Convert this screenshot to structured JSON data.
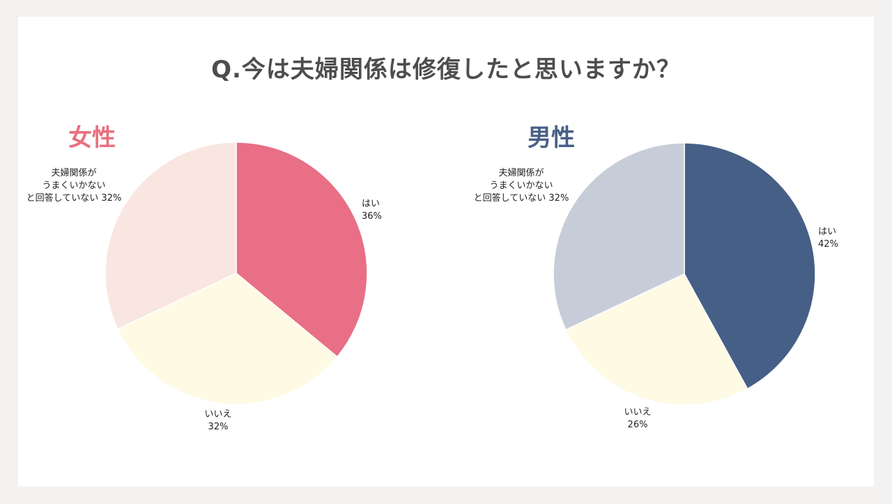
{
  "title": "Q.今は夫婦関係は修復したと思いますか？",
  "chart_data": [
    {
      "type": "pie",
      "title": "女性",
      "title_color": "#e8707f",
      "categories": [
        "はい",
        "いいえ",
        "夫婦関係がうまくいかないと回答していない"
      ],
      "values": [
        36,
        32,
        32
      ],
      "unit": "%",
      "colors": [
        "#e86f86",
        "#fefae4",
        "#f9e6e0"
      ],
      "labels": [
        {
          "lines": [
            "はい",
            "36%"
          ]
        },
        {
          "lines": [
            "いいえ",
            "32%"
          ]
        },
        {
          "lines": [
            "夫婦関係が",
            "うまくいかない",
            "と回答していない 32%"
          ]
        }
      ]
    },
    {
      "type": "pie",
      "title": "男性",
      "title_color": "#475f86",
      "categories": [
        "はい",
        "いいえ",
        "夫婦関係がうまくいかないと回答していない"
      ],
      "values": [
        42,
        26,
        32
      ],
      "unit": "%",
      "colors": [
        "#465f86",
        "#fefae4",
        "#c7cdd8"
      ],
      "labels": [
        {
          "lines": [
            "はい",
            "42%"
          ]
        },
        {
          "lines": [
            "いいえ",
            "26%"
          ]
        },
        {
          "lines": [
            "夫婦関係が",
            "うまくいかない",
            "と回答していない 32%"
          ]
        }
      ]
    }
  ]
}
